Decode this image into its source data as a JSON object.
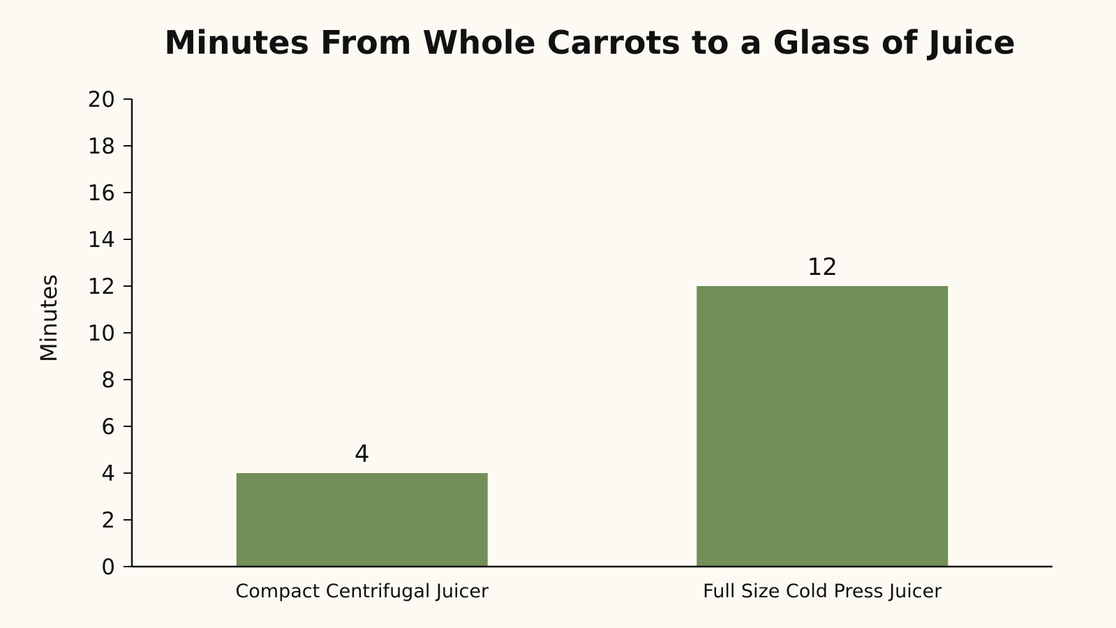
{
  "chart_data": {
    "type": "bar",
    "title": "Minutes From Whole Carrots to a Glass of Juice",
    "xlabel": "",
    "ylabel": "Minutes",
    "categories": [
      "Compact Centrifugal Juicer",
      "Full Size Cold Press Juicer"
    ],
    "values": [
      4,
      12
    ],
    "value_labels": [
      "4",
      "12"
    ],
    "ylim": [
      0,
      20
    ],
    "yticks": [
      0,
      2,
      4,
      6,
      8,
      10,
      12,
      14,
      16,
      18,
      20
    ],
    "grid": false,
    "legend": "none",
    "colors": {
      "bar": "#718f56",
      "background": "#fcfaf3",
      "axis": "#111111",
      "text": "#111111"
    }
  }
}
